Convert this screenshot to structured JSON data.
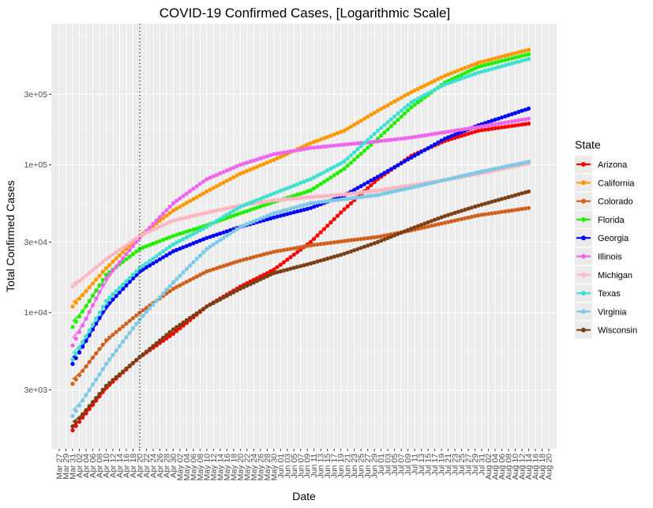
{
  "chart_data": {
    "type": "scatter",
    "title": "COVID-19 Confirmed Cases, [Logarithmic Scale]",
    "xlabel": "Date",
    "ylabel": "Total Confirmed Cases",
    "y_scale": "log",
    "y_ticks": [
      3000,
      10000,
      30000,
      100000,
      300000
    ],
    "y_tick_labels": [
      "3e+03",
      "1e+04",
      "3e+04",
      "1e+05",
      "3e+05"
    ],
    "ylim": [
      1200,
      900000
    ],
    "x_tick_labels": [
      "Mar 27",
      "Mar 29",
      "Mar 31",
      "Apr 02",
      "Apr 04",
      "Apr 06",
      "Apr 08",
      "Apr 10",
      "Apr 12",
      "Apr 14",
      "Apr 16",
      "Apr 18",
      "Apr 20",
      "Apr 22",
      "Apr 24",
      "Apr 26",
      "Apr 28",
      "Apr 30",
      "May 02",
      "May 04",
      "May 06",
      "May 08",
      "May 10",
      "May 12",
      "May 14",
      "May 16",
      "May 18",
      "May 20",
      "May 22",
      "May 24",
      "May 26",
      "May 28",
      "May 30",
      "Jun 01",
      "Jun 03",
      "Jun 05",
      "Jun 07",
      "Jun 09",
      "Jun 11",
      "Jun 13",
      "Jun 15",
      "Jun 17",
      "Jun 19",
      "Jun 21",
      "Jun 23",
      "Jun 25",
      "Jun 27",
      "Jun 29",
      "Jul 01",
      "Jul 03",
      "Jul 05",
      "Jul 07",
      "Jul 09",
      "Jul 11",
      "Jul 13",
      "Jul 15",
      "Jul 17",
      "Jul 19",
      "Jul 21",
      "Jul 23",
      "Jul 25",
      "Jul 27",
      "Jul 29",
      "Jul 31",
      "Aug 02",
      "Aug 04",
      "Aug 06",
      "Aug 08",
      "Aug 10",
      "Aug 12",
      "Aug 14",
      "Aug 16",
      "Aug 18",
      "Aug 20"
    ],
    "x_start": "2020-03-27",
    "x_end": "2020-08-20",
    "vline_date": "2020-04-20",
    "vline_style": "dotted",
    "grid": true,
    "legend": {
      "title": "State",
      "position": "right"
    },
    "series": [
      {
        "name": "Arizona",
        "color": "#ff0000",
        "points": [
          [
            "2020-03-31",
            1600
          ],
          [
            "2020-04-10",
            3100
          ],
          [
            "2020-04-20",
            5000
          ],
          [
            "2020-04-30",
            7200
          ],
          [
            "2020-05-10",
            11000
          ],
          [
            "2020-05-20",
            15000
          ],
          [
            "2020-05-30",
            19500
          ],
          [
            "2020-06-10",
            30000
          ],
          [
            "2020-06-20",
            50000
          ],
          [
            "2020-06-30",
            80000
          ],
          [
            "2020-07-10",
            115000
          ],
          [
            "2020-07-20",
            145000
          ],
          [
            "2020-07-30",
            170000
          ],
          [
            "2020-08-14",
            190000
          ]
        ]
      },
      {
        "name": "California",
        "color": "#ff9900",
        "points": [
          [
            "2020-03-31",
            11000
          ],
          [
            "2020-04-10",
            20000
          ],
          [
            "2020-04-20",
            33000
          ],
          [
            "2020-04-30",
            49000
          ],
          [
            "2020-05-10",
            66000
          ],
          [
            "2020-05-20",
            87000
          ],
          [
            "2020-05-30",
            108000
          ],
          [
            "2020-06-10",
            140000
          ],
          [
            "2020-06-20",
            170000
          ],
          [
            "2020-06-30",
            232000
          ],
          [
            "2020-07-10",
            310000
          ],
          [
            "2020-07-20",
            400000
          ],
          [
            "2020-07-30",
            490000
          ],
          [
            "2020-08-14",
            600000
          ]
        ]
      },
      {
        "name": "Colorado",
        "color": "#d2601d",
        "points": [
          [
            "2020-03-31",
            3300
          ],
          [
            "2020-04-10",
            6500
          ],
          [
            "2020-04-20",
            10000
          ],
          [
            "2020-04-30",
            14500
          ],
          [
            "2020-05-10",
            19000
          ],
          [
            "2020-05-20",
            22500
          ],
          [
            "2020-05-30",
            25800
          ],
          [
            "2020-06-10",
            28500
          ],
          [
            "2020-06-20",
            30500
          ],
          [
            "2020-06-30",
            32500
          ],
          [
            "2020-07-10",
            36000
          ],
          [
            "2020-07-20",
            40500
          ],
          [
            "2020-07-30",
            45500
          ],
          [
            "2020-08-14",
            51000
          ]
        ]
      },
      {
        "name": "Florida",
        "color": "#22ee00",
        "points": [
          [
            "2020-03-31",
            8000
          ],
          [
            "2020-04-10",
            18000
          ],
          [
            "2020-04-20",
            27000
          ],
          [
            "2020-04-30",
            33000
          ],
          [
            "2020-05-10",
            39000
          ],
          [
            "2020-05-20",
            47000
          ],
          [
            "2020-05-30",
            56000
          ],
          [
            "2020-06-10",
            67000
          ],
          [
            "2020-06-20",
            94000
          ],
          [
            "2020-06-30",
            150000
          ],
          [
            "2020-07-10",
            245000
          ],
          [
            "2020-07-20",
            360000
          ],
          [
            "2020-07-30",
            460000
          ],
          [
            "2020-08-14",
            560000
          ]
        ]
      },
      {
        "name": "Georgia",
        "color": "#0000ff",
        "points": [
          [
            "2020-03-31",
            4500
          ],
          [
            "2020-04-10",
            11000
          ],
          [
            "2020-04-20",
            19000
          ],
          [
            "2020-04-30",
            26000
          ],
          [
            "2020-05-10",
            32000
          ],
          [
            "2020-05-20",
            38000
          ],
          [
            "2020-05-30",
            44000
          ],
          [
            "2020-06-10",
            51000
          ],
          [
            "2020-06-20",
            62000
          ],
          [
            "2020-06-30",
            83000
          ],
          [
            "2020-07-10",
            112000
          ],
          [
            "2020-07-20",
            150000
          ],
          [
            "2020-07-30",
            185000
          ],
          [
            "2020-08-14",
            240000
          ]
        ]
      },
      {
        "name": "Illinois",
        "color": "#ee66ee",
        "points": [
          [
            "2020-03-31",
            6000
          ],
          [
            "2020-04-10",
            17000
          ],
          [
            "2020-04-20",
            32000
          ],
          [
            "2020-04-30",
            55000
          ],
          [
            "2020-05-10",
            80000
          ],
          [
            "2020-05-20",
            100000
          ],
          [
            "2020-05-30",
            118000
          ],
          [
            "2020-06-10",
            130000
          ],
          [
            "2020-06-20",
            137000
          ],
          [
            "2020-06-30",
            144000
          ],
          [
            "2020-07-10",
            153000
          ],
          [
            "2020-07-20",
            166000
          ],
          [
            "2020-07-30",
            180000
          ],
          [
            "2020-08-14",
            205000
          ]
        ]
      },
      {
        "name": "Michigan",
        "color": "#ffb6c1",
        "points": [
          [
            "2020-03-31",
            15000
          ],
          [
            "2020-04-10",
            23000
          ],
          [
            "2020-04-20",
            33000
          ],
          [
            "2020-04-30",
            42000
          ],
          [
            "2020-05-10",
            47500
          ],
          [
            "2020-05-20",
            53000
          ],
          [
            "2020-05-30",
            57500
          ],
          [
            "2020-06-10",
            60500
          ],
          [
            "2020-06-20",
            63000
          ],
          [
            "2020-06-30",
            67000
          ],
          [
            "2020-07-10",
            72500
          ],
          [
            "2020-07-20",
            79000
          ],
          [
            "2020-07-30",
            87000
          ],
          [
            "2020-08-14",
            102000
          ]
        ]
      },
      {
        "name": "Texas",
        "color": "#40e0d0",
        "points": [
          [
            "2020-03-31",
            4800
          ],
          [
            "2020-04-10",
            12000
          ],
          [
            "2020-04-20",
            20000
          ],
          [
            "2020-04-30",
            29000
          ],
          [
            "2020-05-10",
            38000
          ],
          [
            "2020-05-20",
            52000
          ],
          [
            "2020-05-30",
            64000
          ],
          [
            "2020-06-10",
            80000
          ],
          [
            "2020-06-20",
            105000
          ],
          [
            "2020-06-30",
            170000
          ],
          [
            "2020-07-10",
            265000
          ],
          [
            "2020-07-20",
            350000
          ],
          [
            "2020-07-30",
            420000
          ],
          [
            "2020-08-14",
            520000
          ]
        ]
      },
      {
        "name": "Virginia",
        "color": "#7ec8e8",
        "points": [
          [
            "2020-03-31",
            2000
          ],
          [
            "2020-04-10",
            4500
          ],
          [
            "2020-04-20",
            9000
          ],
          [
            "2020-04-30",
            16000
          ],
          [
            "2020-05-10",
            27000
          ],
          [
            "2020-05-20",
            38000
          ],
          [
            "2020-05-30",
            47000
          ],
          [
            "2020-06-10",
            55000
          ],
          [
            "2020-06-20",
            58500
          ],
          [
            "2020-06-30",
            62500
          ],
          [
            "2020-07-10",
            70000
          ],
          [
            "2020-07-20",
            79000
          ],
          [
            "2020-07-30",
            89000
          ],
          [
            "2020-08-14",
            105000
          ]
        ]
      },
      {
        "name": "Wisconsin",
        "color": "#7b3f14",
        "points": [
          [
            "2020-03-31",
            1700
          ],
          [
            "2020-04-10",
            3200
          ],
          [
            "2020-04-20",
            5000
          ],
          [
            "2020-04-30",
            7700
          ],
          [
            "2020-05-10",
            11000
          ],
          [
            "2020-05-20",
            14500
          ],
          [
            "2020-05-30",
            18500
          ],
          [
            "2020-06-10",
            21500
          ],
          [
            "2020-06-20",
            25000
          ],
          [
            "2020-06-30",
            30000
          ],
          [
            "2020-07-10",
            37000
          ],
          [
            "2020-07-20",
            45000
          ],
          [
            "2020-07-30",
            53000
          ],
          [
            "2020-08-14",
            66000
          ]
        ]
      }
    ]
  }
}
